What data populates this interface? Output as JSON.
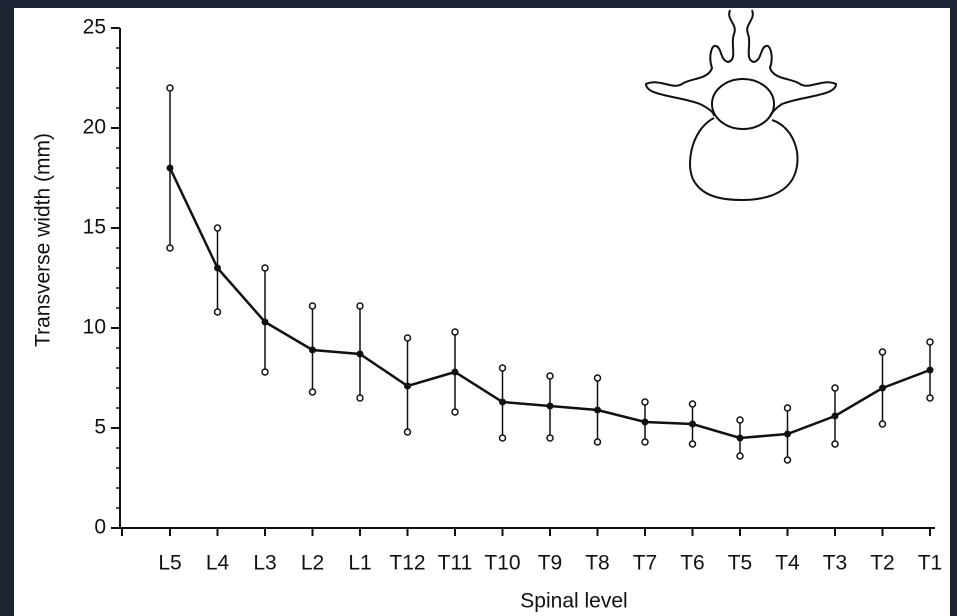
{
  "chart_data": {
    "type": "line",
    "x_label": "Spinal level",
    "y_label": "Transverse width (mm)",
    "categories": [
      "L5",
      "L4",
      "L3",
      "L2",
      "L1",
      "T12",
      "T11",
      "T10",
      "T9",
      "T8",
      "T7",
      "T6",
      "T5",
      "T4",
      "T3",
      "T2",
      "T1"
    ],
    "series": [
      {
        "values": [
          18,
          13,
          10.3,
          8.9,
          8.7,
          7.1,
          7.8,
          6.3,
          6.1,
          5.9,
          5.3,
          5.2,
          4.5,
          4.7,
          5.6,
          7,
          7.9
        ],
        "upper": [
          22,
          15,
          13,
          11.1,
          11.1,
          9.5,
          9.8,
          8,
          7.6,
          7.5,
          6.3,
          6.2,
          5.4,
          6,
          7,
          8.8,
          9.3
        ],
        "lower": [
          14,
          10.8,
          7.8,
          6.8,
          6.5,
          4.8,
          5.8,
          4.5,
          4.5,
          4.3,
          4.3,
          4.2,
          3.6,
          3.4,
          4.2,
          5.2,
          6.5
        ],
        "color": "#111111"
      }
    ],
    "ylim": [
      0,
      25
    ],
    "yticks": [
      0,
      5,
      10,
      15,
      20,
      25
    ]
  }
}
